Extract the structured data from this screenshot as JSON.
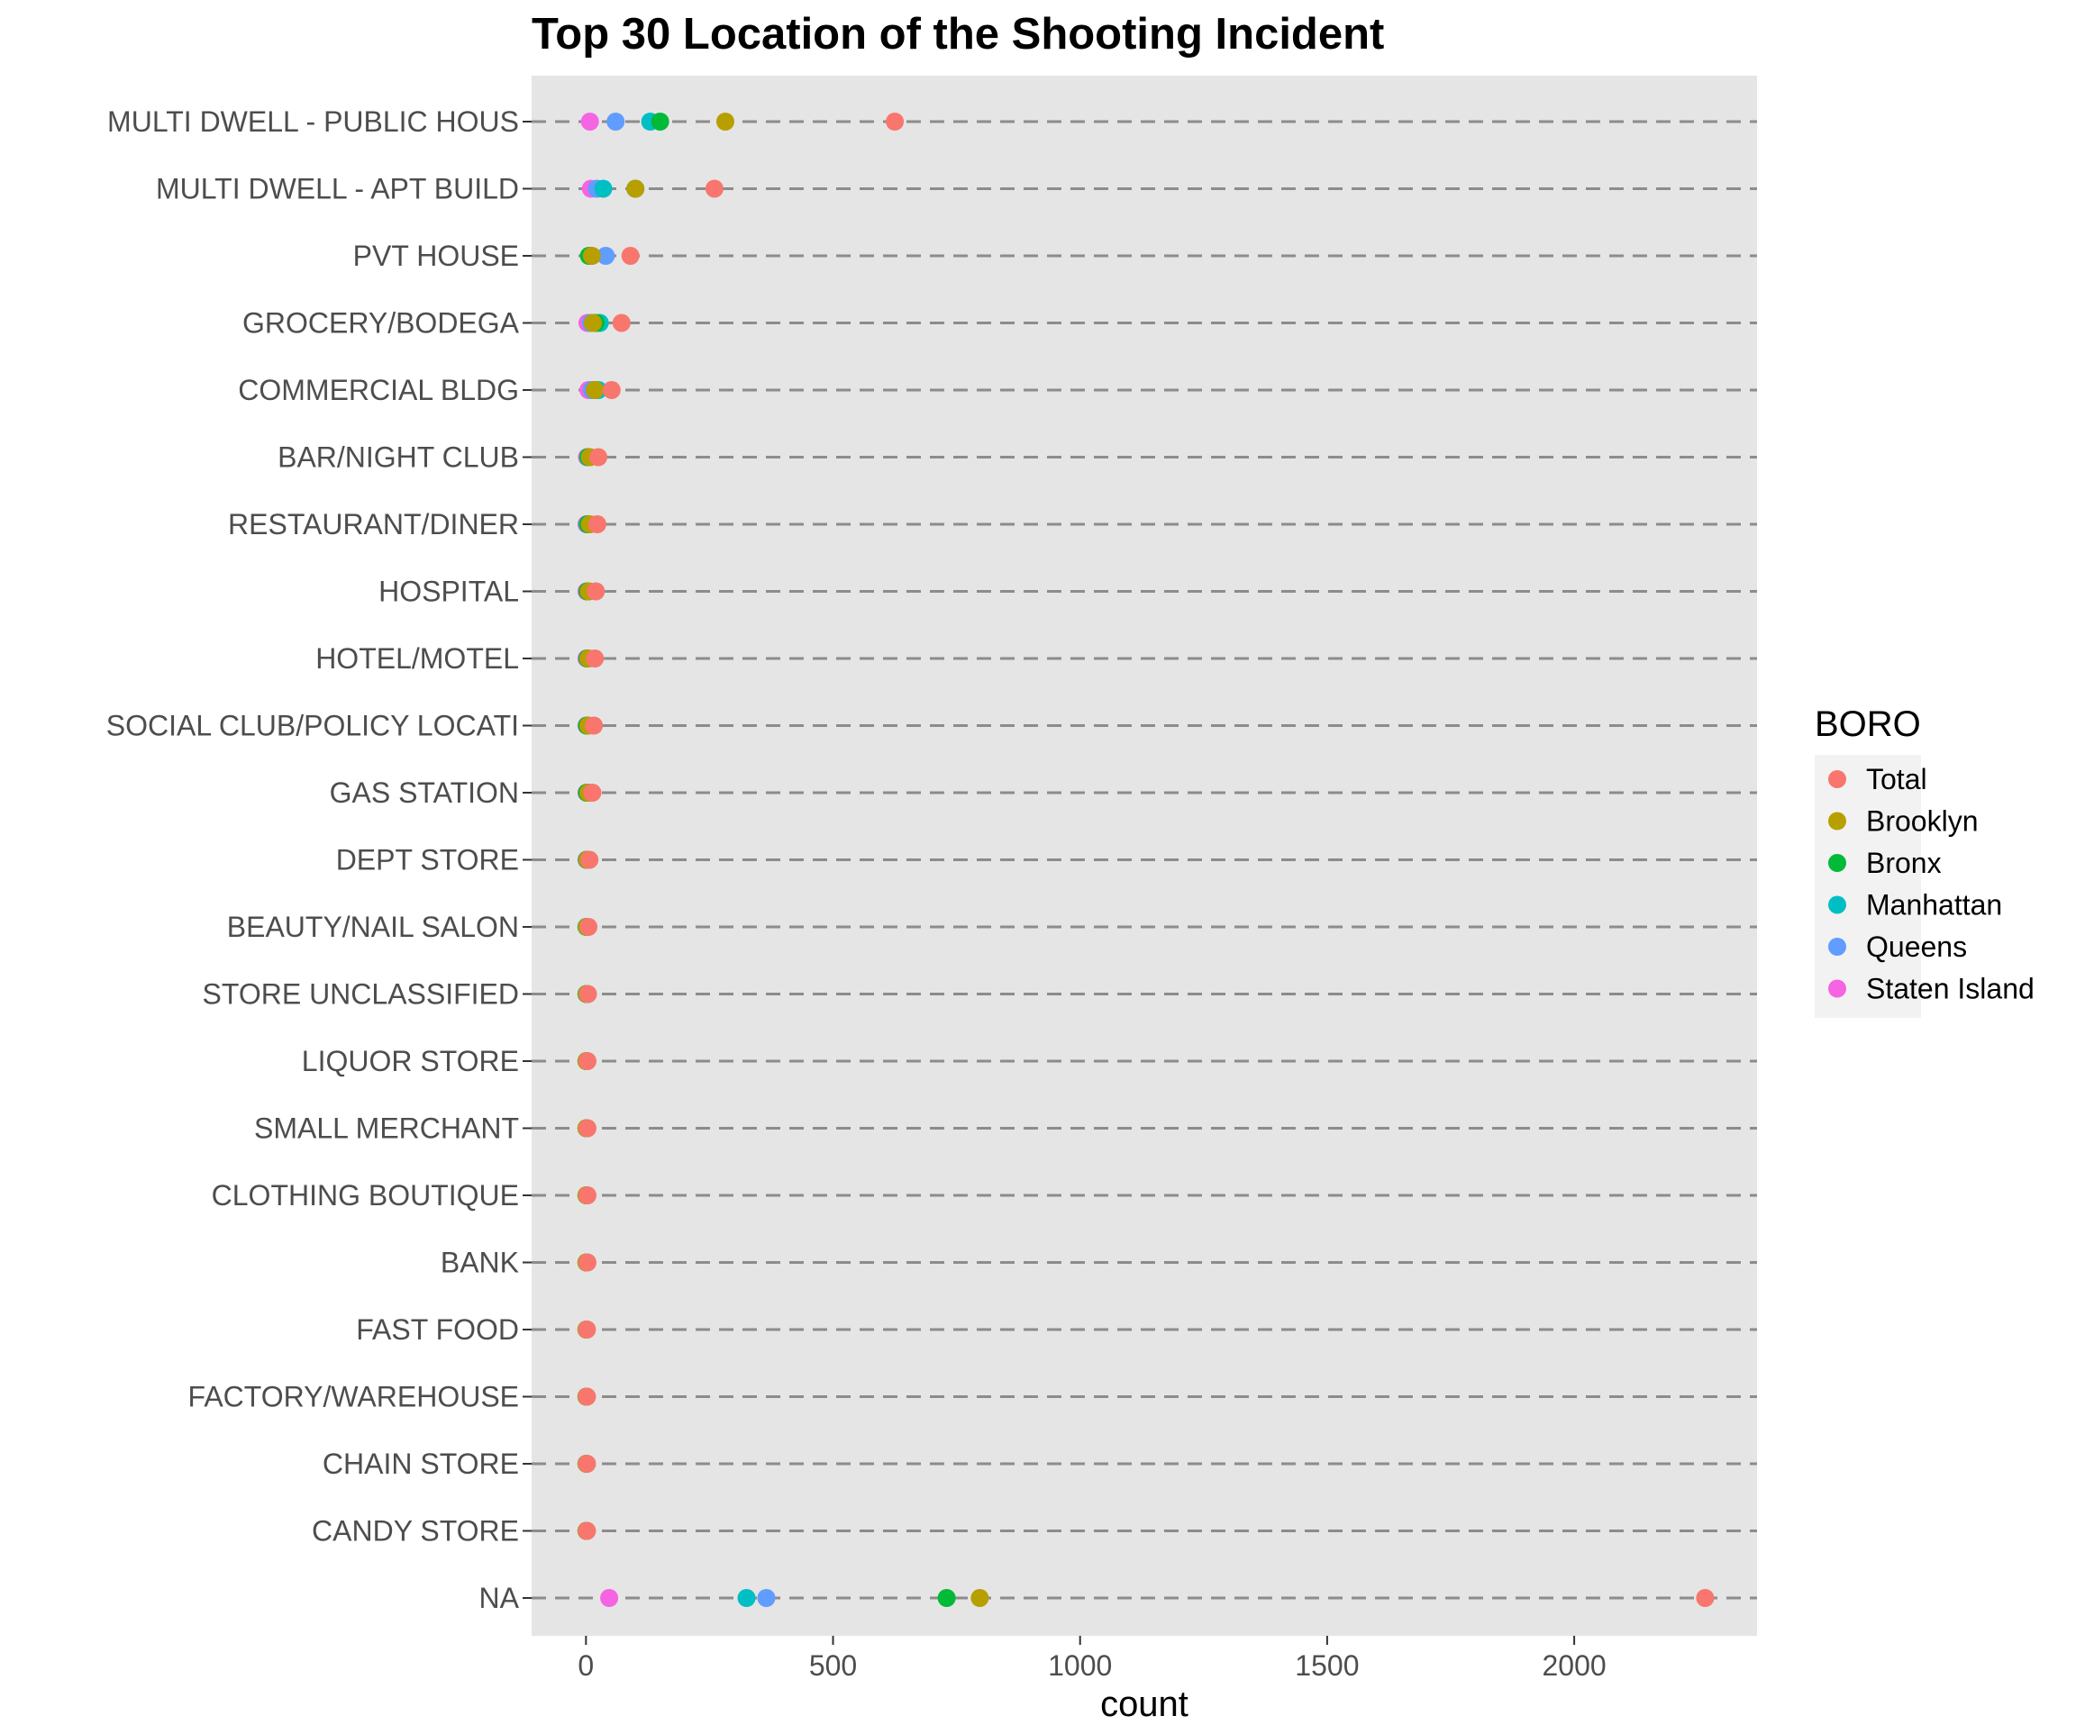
{
  "chart_data": {
    "type": "scatter",
    "title": "Top 30 Location of the Shooting Incident",
    "xlabel": "count",
    "ylabel": "",
    "xlim": [
      -110,
      2370
    ],
    "x_ticks": [
      0,
      500,
      1000,
      1500,
      2000
    ],
    "grid": "dashed horizontal lines",
    "legend_position": "right",
    "legend_title": "BORO",
    "categories": [
      "MULTI DWELL - PUBLIC HOUS",
      "MULTI DWELL - APT BUILD",
      "PVT HOUSE",
      "GROCERY/BODEGA",
      "COMMERCIAL BLDG",
      "BAR/NIGHT CLUB",
      "RESTAURANT/DINER",
      "HOSPITAL",
      "HOTEL/MOTEL",
      "SOCIAL CLUB/POLICY LOCATI",
      "GAS STATION",
      "DEPT STORE",
      "BEAUTY/NAIL SALON",
      "STORE UNCLASSIFIED",
      "LIQUOR STORE",
      "SMALL MERCHANT",
      "CLOTHING BOUTIQUE",
      "BANK",
      "FAST FOOD",
      "FACTORY/WAREHOUSE",
      "CHAIN STORE",
      "CANDY STORE",
      "NA"
    ],
    "series": [
      {
        "name": "Staten Island",
        "color": "#F564E3",
        "values": [
          8,
          10,
          12,
          3,
          5,
          2,
          1,
          1,
          1,
          1,
          1,
          1,
          1,
          1,
          1,
          1,
          1,
          1,
          1,
          1,
          1,
          1,
          47
        ]
      },
      {
        "name": "Queens",
        "color": "#619CFF",
        "values": [
          60,
          22,
          40,
          10,
          12,
          6,
          5,
          4,
          3,
          3,
          4,
          2,
          2,
          2,
          1,
          1,
          1,
          1,
          1,
          1,
          1,
          1,
          365
        ]
      },
      {
        "name": "Manhattan",
        "color": "#00BFC4",
        "values": [
          130,
          35,
          8,
          28,
          25,
          4,
          3,
          4,
          3,
          3,
          3,
          2,
          1,
          1,
          1,
          1,
          1,
          1,
          1,
          1,
          1,
          1,
          325
        ]
      },
      {
        "name": "Bronx",
        "color": "#00BA38",
        "values": [
          150,
          100,
          6,
          20,
          18,
          5,
          4,
          3,
          3,
          2,
          2,
          2,
          1,
          1,
          1,
          1,
          1,
          1,
          1,
          1,
          1,
          1,
          730
        ]
      },
      {
        "name": "Brooklyn",
        "color": "#B79F00",
        "values": [
          282,
          100,
          12,
          14,
          18,
          8,
          8,
          6,
          5,
          5,
          5,
          3,
          2,
          2,
          1,
          1,
          1,
          1,
          1,
          1,
          1,
          1,
          797
        ]
      },
      {
        "name": "Total",
        "color": "#F8766D",
        "values": [
          625,
          260,
          90,
          72,
          52,
          25,
          23,
          20,
          18,
          16,
          13,
          7,
          5,
          4,
          3,
          3,
          3,
          3,
          2,
          2,
          2,
          2,
          2265
        ]
      }
    ],
    "legend_order": [
      "Total",
      "Brooklyn",
      "Bronx",
      "Manhattan",
      "Queens",
      "Staten Island"
    ]
  }
}
